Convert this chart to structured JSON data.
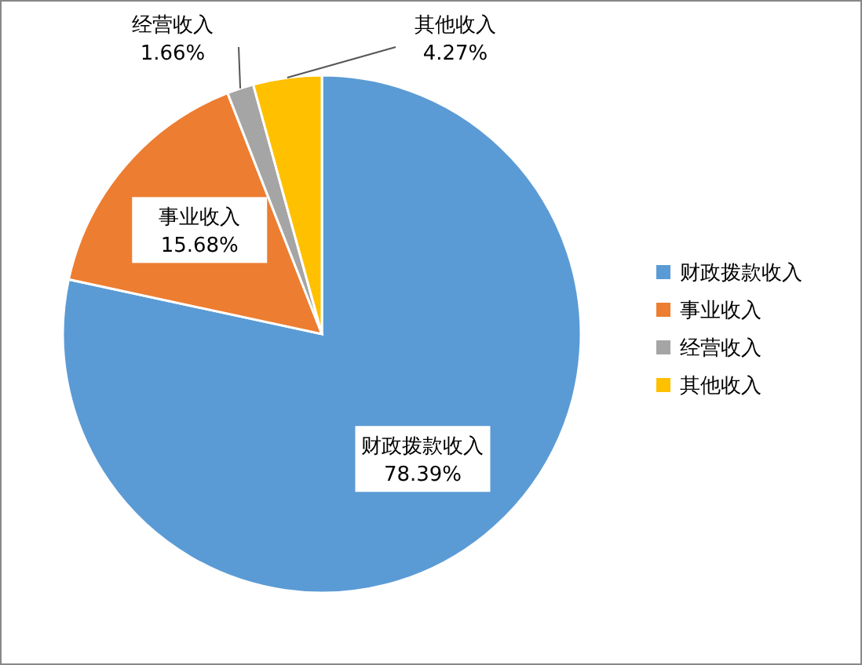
{
  "chart_data": {
    "type": "pie",
    "categories": [
      "财政拨款收入",
      "事业收入",
      "经营收入",
      "其他收入"
    ],
    "values": [
      78.39,
      15.68,
      1.66,
      4.27
    ],
    "colors": [
      "#5b9bd5",
      "#ed7d31",
      "#a5a5a5",
      "#ffc000"
    ],
    "value_labels": [
      "78.39%",
      "15.68%",
      "1.66%",
      "4.27%"
    ],
    "legend": "right"
  }
}
